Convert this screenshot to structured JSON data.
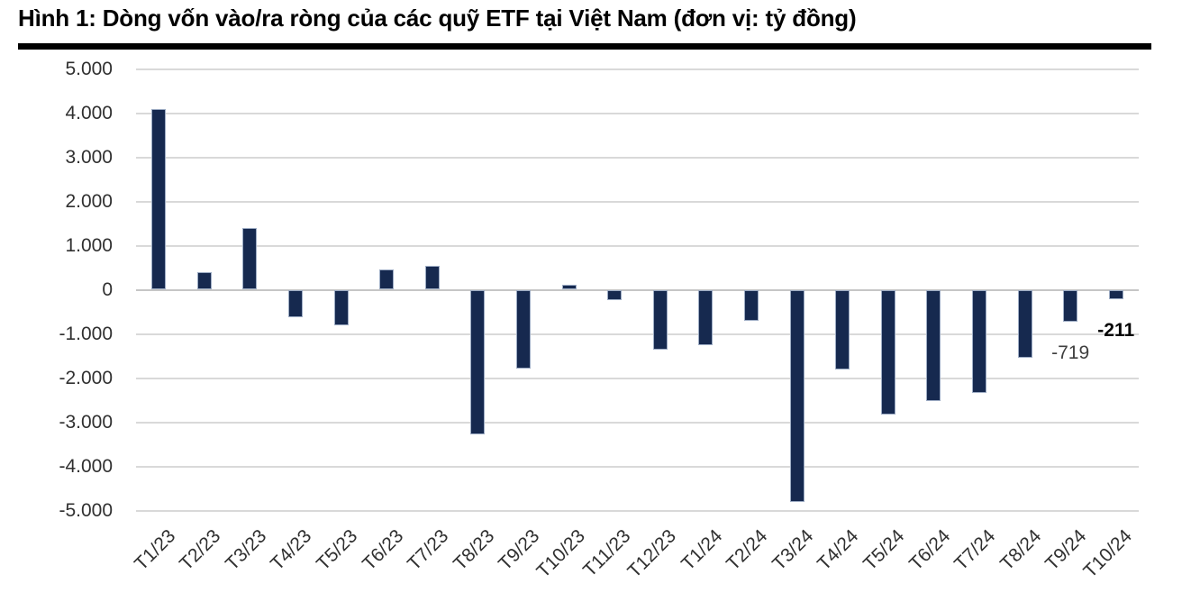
{
  "header": {
    "title": "Hình 1: Dòng vốn vào/ra ròng của các quỹ ETF tại Việt Nam (đơn vị: tỷ đồng)"
  },
  "chart_data": {
    "type": "bar",
    "title": "Dòng vốn vào/ra ròng của các quỹ ETF tại Việt Nam",
    "unit": "tỷ đồng",
    "categories": [
      "T1/23",
      "T2/23",
      "T3/23",
      "T4/23",
      "T5/23",
      "T6/23",
      "T7/23",
      "T8/23",
      "T9/23",
      "T10/23",
      "T11/23",
      "T12/23",
      "T1/24",
      "T2/24",
      "T3/24",
      "T4/24",
      "T5/24",
      "T6/24",
      "T7/24",
      "T8/24",
      "T9/24",
      "T10/24"
    ],
    "values": [
      4100,
      390,
      1400,
      -620,
      -800,
      450,
      550,
      -3280,
      -1790,
      110,
      -240,
      -1360,
      -1250,
      -700,
      -4810,
      -1810,
      -2830,
      -2520,
      -2340,
      -1550,
      -719,
      -211
    ],
    "ylim": [
      -5000,
      5000
    ],
    "ytick_values": [
      5000,
      4000,
      3000,
      2000,
      1000,
      0,
      -1000,
      -2000,
      -3000,
      -4000,
      -5000
    ],
    "ytick_labels": [
      "5.000",
      "4.000",
      "3.000",
      "2.000",
      "1.000",
      "0",
      "-1.000",
      "-2.000",
      "-3.000",
      "-4.000",
      "-5.000"
    ],
    "grid": true,
    "legend": "none",
    "bar_color": "#16294F",
    "bar_border_color": "#9DACC4",
    "gridline_color": "#D9D9D9",
    "annotations": [
      {
        "index": 20,
        "text": "-719",
        "bold": false
      },
      {
        "index": 21,
        "text": "-211",
        "bold": true
      }
    ]
  }
}
